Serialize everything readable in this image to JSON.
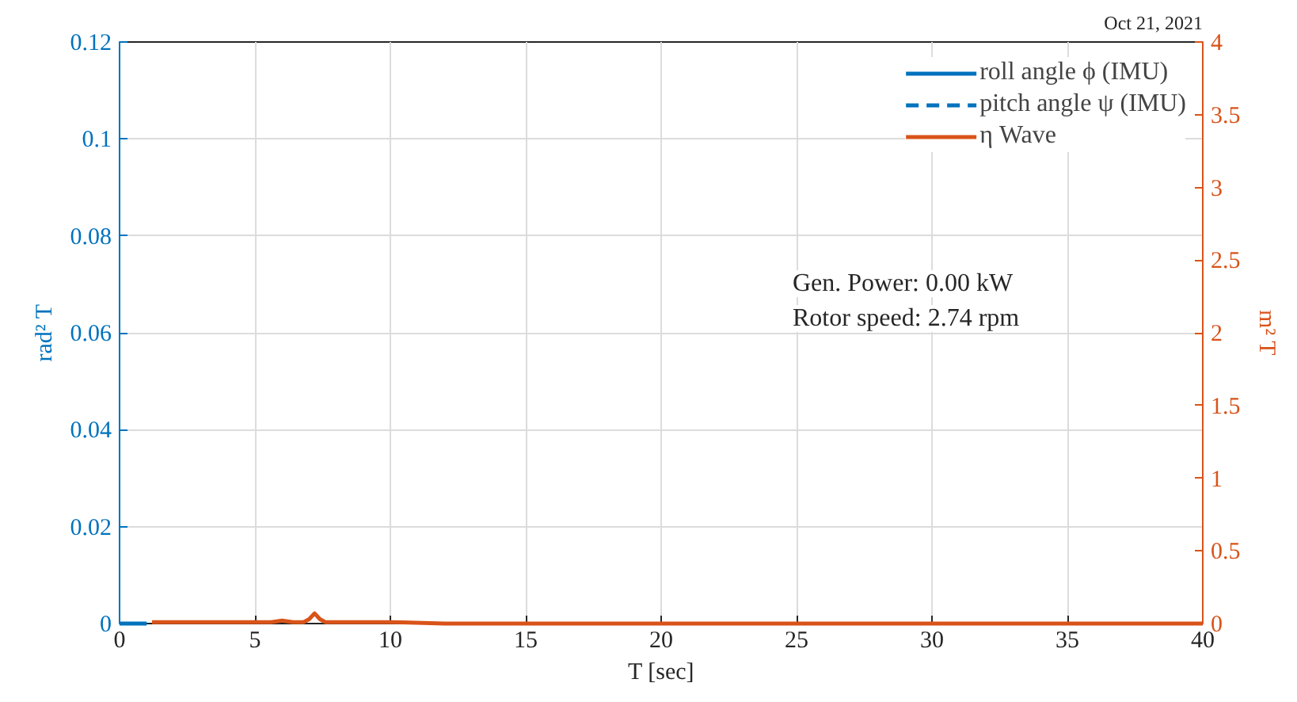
{
  "chart_data": {
    "type": "line",
    "title": "Oct 21, 2021",
    "xlabel": "T [sec]",
    "ylabel": "rad² T",
    "y2label": "m² T",
    "series": [
      {
        "name": "roll angle ϕ (IMU)",
        "color": "#0072bd",
        "x": [
          0,
          1
        ],
        "values": [
          0,
          0
        ],
        "line_style": "solid"
      },
      {
        "name": "pitch angle ψ (IMU)",
        "color": "#0072bd",
        "line_style": "dashed"
      },
      {
        "name": "η Wave",
        "color": "#d95319",
        "axis": "y2",
        "line_style": "solid",
        "x": [
          1.2,
          2,
          3,
          4,
          5,
          5.6,
          6,
          6.4,
          6.8,
          7.0,
          7.2,
          7.4,
          7.6,
          8,
          8.5,
          9,
          9.5,
          10,
          12,
          15,
          20,
          25,
          30,
          35,
          40
        ],
        "values": [
          0.01,
          0.01,
          0.01,
          0.01,
          0.01,
          0.01,
          0.02,
          0.01,
          0.01,
          0.03,
          0.07,
          0.03,
          0.01,
          0.01,
          0.01,
          0.01,
          0.01,
          0.01,
          0,
          0,
          0,
          0,
          0,
          0,
          0
        ]
      }
    ],
    "xlim": [
      0,
      40
    ],
    "xticks": [
      0,
      5,
      10,
      15,
      20,
      25,
      30,
      35,
      40
    ],
    "ylim": [
      0,
      0.12
    ],
    "yticks": [
      0,
      0.02,
      0.04,
      0.06,
      0.08,
      0.1,
      0.12
    ],
    "y2lim": [
      0,
      4
    ],
    "y2ticks": [
      0,
      0.5,
      1,
      1.5,
      2,
      2.5,
      3,
      3.5,
      4
    ],
    "grid": true,
    "legend": "top right",
    "annotations": [
      "Gen. Power: 0.00 kW",
      "Rotor speed: 2.74 rpm"
    ]
  }
}
